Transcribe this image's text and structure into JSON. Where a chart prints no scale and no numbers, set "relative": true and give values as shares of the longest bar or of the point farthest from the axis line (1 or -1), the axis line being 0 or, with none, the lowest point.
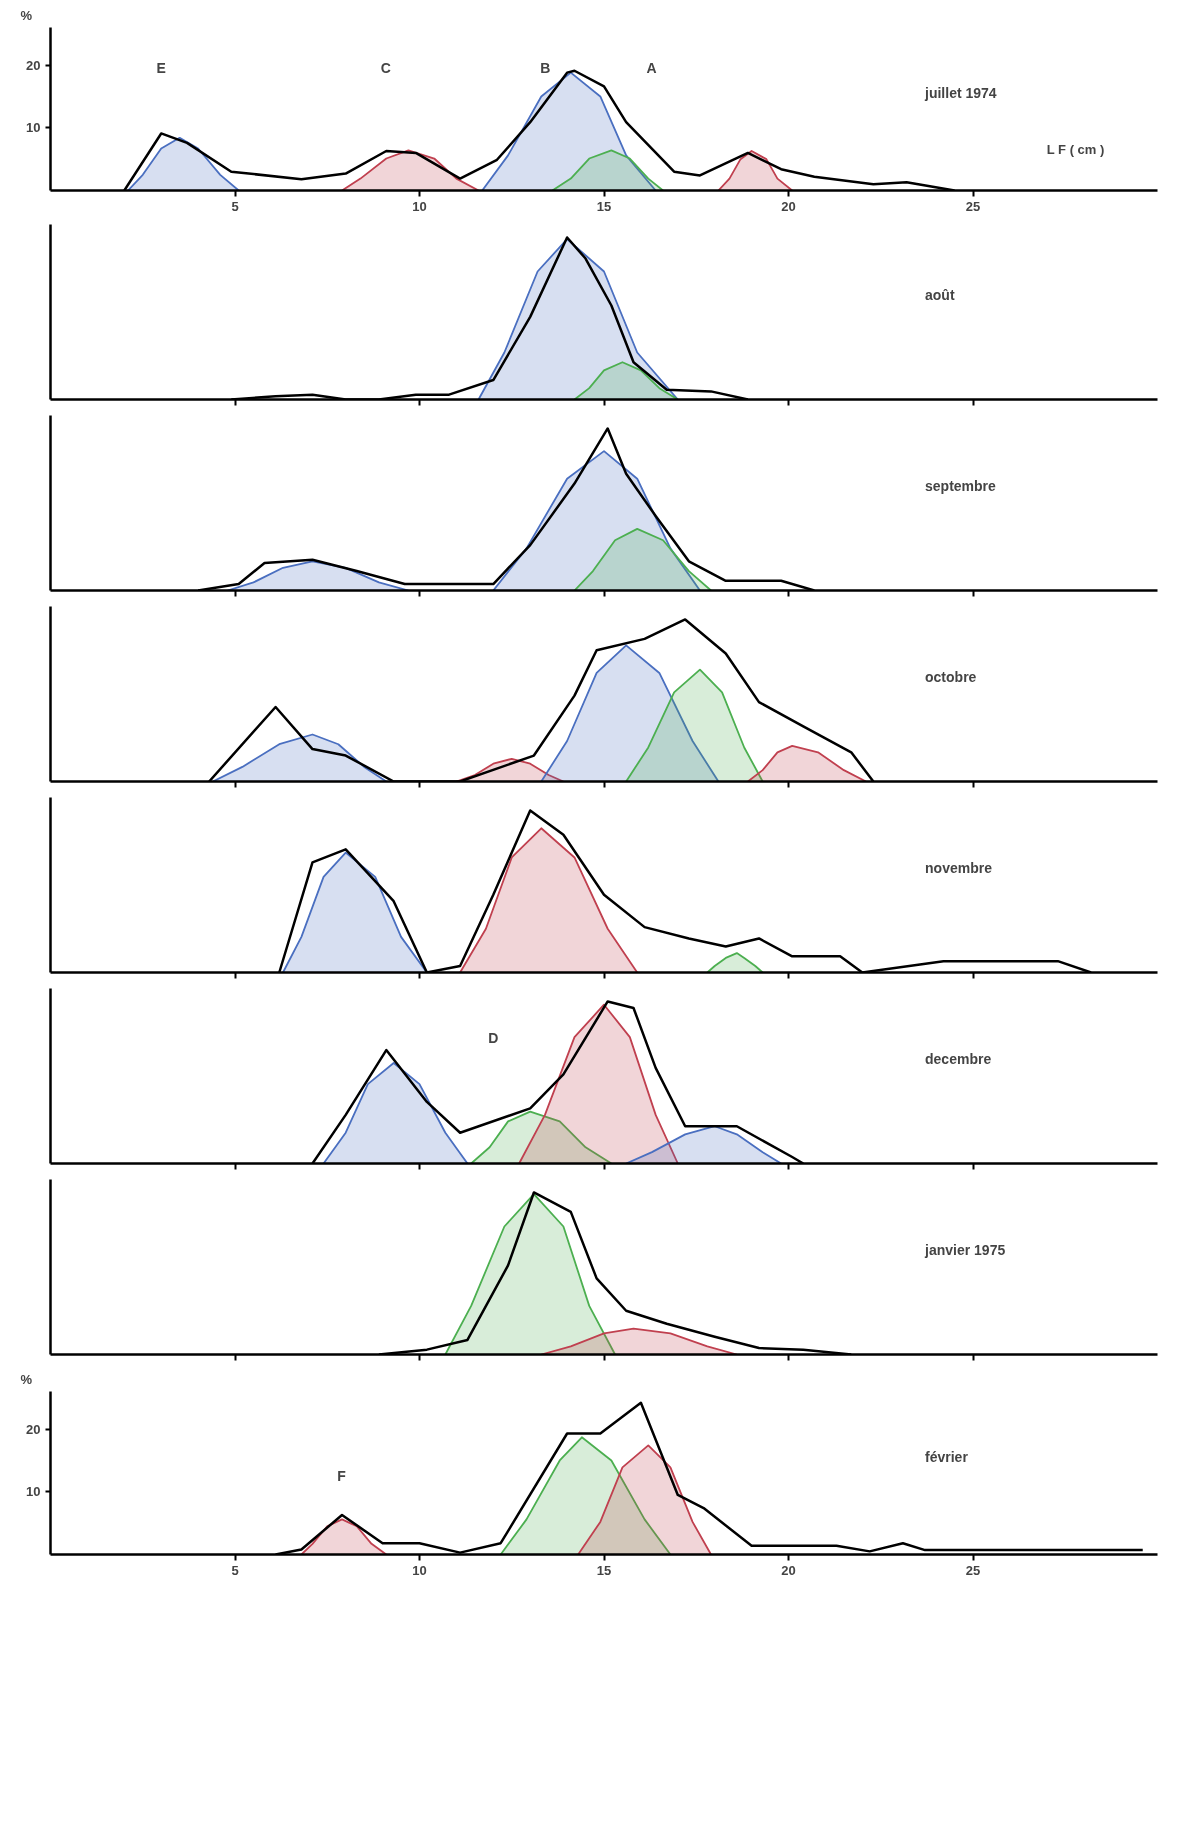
{
  "chart_data": [
    {
      "type": "line",
      "xlabel": "L F ( cm )",
      "ylabel": "%",
      "xlim": [
        0,
        30
      ],
      "ylim": [
        0,
        26
      ],
      "xticks": [
        5,
        10,
        15,
        20,
        25
      ],
      "yticks": [
        10,
        20
      ],
      "grid": false,
      "annotations": [
        "juillet  1974",
        "E",
        "C",
        "B",
        "A"
      ],
      "series": [
        {
          "type": "area",
          "color": "#4a6fc0",
          "x": [
            2.1,
            2.5,
            3.0,
            3.5,
            4.0,
            4.6,
            5.1
          ],
          "values": [
            0,
            2.5,
            6.7,
            8.4,
            6.7,
            2.5,
            0
          ]
        },
        {
          "type": "area",
          "color": "#c0404f",
          "x": [
            7.9,
            8.4,
            9.1,
            9.7,
            10.4,
            11.0,
            11.6
          ],
          "values": [
            0,
            1.9,
            5.1,
            6.4,
            5.1,
            1.9,
            0
          ]
        },
        {
          "type": "area",
          "color": "#4a6fc0",
          "x": [
            11.7,
            12.4,
            13.3,
            14.1,
            14.9,
            15.6,
            16.4
          ],
          "values": [
            0,
            5.6,
            15,
            18.8,
            15,
            5.6,
            0
          ]
        },
        {
          "type": "area",
          "color": "#4caf50",
          "x": [
            13.6,
            14.1,
            14.6,
            15.2,
            15.7,
            16.2,
            16.6
          ],
          "values": [
            0,
            1.9,
            5.1,
            6.4,
            5.1,
            1.9,
            0
          ]
        },
        {
          "type": "area",
          "color": "#c0404f",
          "x": [
            18.1,
            18.4,
            18.7,
            19.0,
            19.4,
            19.7,
            20.1
          ],
          "values": [
            0,
            1.9,
            5,
            6.3,
            5,
            1.9,
            0
          ]
        },
        {
          "color": "#000000",
          "x": [
            2.0,
            3.0,
            3.7,
            4.9,
            6.8,
            8.0,
            9.1,
            9.9,
            11.1,
            12.1,
            13.0,
            14.0,
            14.2,
            15.0,
            15.6,
            16.9,
            17.6,
            18.9,
            19.8,
            20.7,
            22.3,
            23.2,
            24.5
          ],
          "values": [
            0,
            9.1,
            7.6,
            3.0,
            1.8,
            2.7,
            6.3,
            6.0,
            1.9,
            4.9,
            10.9,
            18.8,
            19.1,
            16.6,
            10.9,
            3.0,
            2.4,
            6.0,
            3.4,
            2.2,
            1.0,
            1.3,
            0
          ]
        }
      ]
    },
    {
      "type": "line",
      "relative": true,
      "xlim": [
        0,
        30
      ],
      "xticks": [
        5,
        10,
        15,
        20,
        25
      ],
      "grid": false,
      "tick_labels": false,
      "annotations": [
        "août"
      ],
      "series": [
        {
          "type": "area",
          "color": "#4a6fc0",
          "x": [
            11.6,
            12.3,
            13.2,
            14.0,
            15.0,
            15.9,
            17.0
          ],
          "values": [
            0,
            0.29,
            0.79,
            0.99,
            0.79,
            0.29,
            0
          ]
        },
        {
          "type": "area",
          "color": "#4caf50",
          "x": [
            14.2,
            14.6,
            15.0,
            15.5,
            16.0,
            16.5,
            17.0
          ],
          "values": [
            0,
            0.07,
            0.18,
            0.23,
            0.18,
            0.07,
            0
          ]
        },
        {
          "color": "#000000",
          "x": [
            4.9,
            6.1,
            7.1,
            8.0,
            8.9,
            9.9,
            10.8,
            12.0,
            13.0,
            14.0,
            14.5,
            15.2,
            15.8,
            16.7,
            17.9,
            18.9
          ],
          "values": [
            0,
            0.02,
            0.03,
            0,
            0,
            0.03,
            0.03,
            0.12,
            0.51,
            1,
            0.87,
            0.58,
            0.23,
            0.06,
            0.05,
            0
          ]
        }
      ]
    },
    {
      "type": "line",
      "relative": true,
      "xlim": [
        0,
        30
      ],
      "xticks": [
        5,
        10,
        15,
        20,
        25
      ],
      "grid": false,
      "tick_labels": false,
      "annotations": [
        "septembre"
      ],
      "series": [
        {
          "type": "area",
          "color": "#4a6fc0",
          "x": [
            4.8,
            5.5,
            6.3,
            7.1,
            8.0,
            8.9,
            9.7
          ],
          "values": [
            0,
            0.05,
            0.14,
            0.18,
            0.14,
            0.05,
            0
          ]
        },
        {
          "type": "area",
          "color": "#4a6fc0",
          "x": [
            12.0,
            12.9,
            14.0,
            15.0,
            15.9,
            16.8,
            17.6
          ],
          "values": [
            0,
            0.26,
            0.69,
            0.86,
            0.69,
            0.26,
            0
          ]
        },
        {
          "type": "area",
          "color": "#4caf50",
          "x": [
            14.2,
            14.7,
            15.3,
            15.9,
            16.6,
            17.3,
            17.9
          ],
          "values": [
            0,
            0.12,
            0.31,
            0.38,
            0.31,
            0.12,
            0
          ]
        },
        {
          "color": "#000000",
          "x": [
            4.0,
            5.1,
            5.8,
            7.1,
            8.3,
            9.6,
            12.0,
            13.0,
            14.2,
            15.1,
            15.6,
            16.4,
            17.3,
            18.3,
            19.8,
            20.7
          ],
          "values": [
            0,
            0.04,
            0.17,
            0.19,
            0.12,
            0.04,
            0.04,
            0.28,
            0.66,
            1,
            0.72,
            0.46,
            0.18,
            0.06,
            0.06,
            0
          ]
        }
      ]
    },
    {
      "type": "line",
      "relative": true,
      "xlim": [
        0,
        30
      ],
      "xticks": [
        5,
        10,
        15,
        20,
        25
      ],
      "grid": false,
      "tick_labels": false,
      "annotations": [
        "octobre"
      ],
      "series": [
        {
          "type": "area",
          "color": "#4a6fc0",
          "x": [
            4.4,
            5.2,
            6.2,
            7.1,
            7.8,
            8.5,
            9.1
          ],
          "values": [
            0,
            0.09,
            0.23,
            0.29,
            0.23,
            0.09,
            0
          ]
        },
        {
          "type": "area",
          "color": "#c0404f",
          "x": [
            11.0,
            11.5,
            12.0,
            12.5,
            13.0,
            13.5,
            13.9
          ],
          "values": [
            0,
            0.04,
            0.11,
            0.14,
            0.11,
            0.04,
            0
          ]
        },
        {
          "type": "area",
          "color": "#4a6fc0",
          "x": [
            13.3,
            14.0,
            14.8,
            15.6,
            16.5,
            17.4,
            18.1
          ],
          "values": [
            0,
            0.25,
            0.67,
            0.84,
            0.67,
            0.25,
            0
          ]
        },
        {
          "type": "area",
          "color": "#4caf50",
          "x": [
            15.6,
            16.2,
            16.9,
            17.6,
            18.2,
            18.8,
            19.3
          ],
          "values": [
            0,
            0.21,
            0.55,
            0.69,
            0.55,
            0.21,
            0
          ]
        },
        {
          "type": "area",
          "color": "#c0404f",
          "x": [
            18.9,
            19.3,
            19.7,
            20.1,
            20.8,
            21.5,
            22.1
          ],
          "values": [
            0,
            0.07,
            0.18,
            0.22,
            0.18,
            0.07,
            0
          ]
        },
        {
          "color": "#000000",
          "x": [
            4.3,
            6.1,
            7.1,
            8.0,
            9.3,
            11.1,
            13.1,
            14.2,
            14.8,
            16.1,
            17.2,
            18.3,
            19.2,
            20.4,
            21.7,
            22.3
          ],
          "values": [
            0,
            0.46,
            0.2,
            0.16,
            0,
            0,
            0.16,
            0.53,
            0.81,
            0.88,
            1,
            0.79,
            0.49,
            0.34,
            0.18,
            0
          ]
        }
      ]
    },
    {
      "type": "line",
      "relative": true,
      "xlim": [
        0,
        30
      ],
      "xticks": [
        5,
        10,
        15,
        20,
        25
      ],
      "grid": false,
      "tick_labels": false,
      "annotations": [
        "novembre"
      ],
      "series": [
        {
          "type": "area",
          "color": "#4a6fc0",
          "x": [
            6.3,
            6.8,
            7.4,
            8.0,
            8.8,
            9.5,
            10.2
          ],
          "values": [
            0,
            0.22,
            0.59,
            0.74,
            0.59,
            0.22,
            0
          ]
        },
        {
          "type": "area",
          "color": "#c0404f",
          "x": [
            11.1,
            11.8,
            12.5,
            13.3,
            14.2,
            15.1,
            15.9
          ],
          "values": [
            0,
            0.27,
            0.71,
            0.89,
            0.71,
            0.27,
            0
          ]
        },
        {
          "type": "area",
          "color": "#4caf50",
          "x": [
            17.8,
            18.0,
            18.3,
            18.6,
            18.8,
            19.1,
            19.3
          ],
          "values": [
            0,
            0.04,
            0.09,
            0.12,
            0.09,
            0.04,
            0
          ]
        },
        {
          "color": "#000000",
          "x": [
            6.2,
            7.1,
            8.0,
            9.3,
            10.2,
            11.1,
            12.0,
            13.0,
            13.9,
            15.0,
            16.1,
            17.3,
            18.3,
            19.2,
            20.1,
            21.4,
            22.0,
            24.2,
            27.3,
            28.2
          ],
          "values": [
            0,
            0.68,
            0.76,
            0.44,
            0,
            0.04,
            0.48,
            1,
            0.85,
            0.48,
            0.28,
            0.21,
            0.16,
            0.21,
            0.1,
            0.1,
            0,
            0.07,
            0.07,
            0
          ]
        }
      ]
    },
    {
      "type": "line",
      "relative": true,
      "xlim": [
        0,
        30
      ],
      "xticks": [
        5,
        10,
        15,
        20,
        25
      ],
      "grid": false,
      "tick_labels": false,
      "annotations": [
        "decembre",
        "D"
      ],
      "series": [
        {
          "type": "area",
          "color": "#4a6fc0",
          "x": [
            7.4,
            8.0,
            8.6,
            9.3,
            10.0,
            10.7,
            11.3
          ],
          "values": [
            0,
            0.19,
            0.49,
            0.62,
            0.49,
            0.19,
            0
          ]
        },
        {
          "type": "area",
          "color": "#4caf50",
          "x": [
            11.4,
            11.9,
            12.4,
            13.0,
            13.8,
            14.5,
            15.2
          ],
          "values": [
            0,
            0.1,
            0.26,
            0.32,
            0.26,
            0.1,
            0
          ]
        },
        {
          "type": "area",
          "color": "#c0404f",
          "x": [
            12.7,
            13.4,
            14.2,
            15.0,
            15.7,
            16.4,
            17.0
          ],
          "values": [
            0,
            0.3,
            0.78,
            0.98,
            0.78,
            0.3,
            0
          ]
        },
        {
          "type": "area",
          "color": "#4a6fc0",
          "x": [
            15.6,
            16.3,
            17.2,
            18.0,
            18.6,
            19.3,
            19.8
          ],
          "values": [
            0,
            0.07,
            0.18,
            0.23,
            0.18,
            0.07,
            0
          ]
        },
        {
          "color": "#000000",
          "x": [
            7.1,
            8.0,
            9.1,
            10.2,
            11.1,
            13.0,
            13.9,
            15.1,
            15.8,
            16.4,
            17.2,
            18.6,
            20.1,
            20.4
          ],
          "values": [
            0,
            0.3,
            0.7,
            0.38,
            0.19,
            0.34,
            0.55,
            1,
            0.96,
            0.59,
            0.23,
            0.23,
            0.04,
            0
          ]
        }
      ]
    },
    {
      "type": "line",
      "relative": true,
      "xlim": [
        0,
        30
      ],
      "xticks": [
        5,
        10,
        15,
        20,
        25
      ],
      "grid": false,
      "tick_labels": false,
      "annotations": [
        "janvier   1975"
      ],
      "series": [
        {
          "type": "area",
          "color": "#4caf50",
          "x": [
            10.7,
            11.4,
            12.3,
            13.1,
            13.9,
            14.6,
            15.3
          ],
          "values": [
            0,
            0.3,
            0.79,
            0.99,
            0.79,
            0.3,
            0
          ]
        },
        {
          "type": "area",
          "color": "#c0404f",
          "x": [
            13.3,
            14.1,
            15.0,
            15.8,
            16.8,
            17.8,
            18.6
          ],
          "values": [
            0,
            0.05,
            0.13,
            0.16,
            0.13,
            0.05,
            0
          ]
        },
        {
          "color": "#000000",
          "x": [
            8.9,
            10.2,
            11.3,
            12.4,
            13.1,
            14.1,
            14.8,
            15.6,
            16.7,
            18.0,
            19.2,
            20.4,
            21.7
          ],
          "values": [
            0,
            0.03,
            0.09,
            0.55,
            1,
            0.88,
            0.47,
            0.27,
            0.19,
            0.11,
            0.04,
            0.03,
            0
          ]
        }
      ]
    },
    {
      "type": "line",
      "ylabel": "%",
      "xlim": [
        0,
        30
      ],
      "ylim": [
        0,
        26
      ],
      "xticks": [
        5,
        10,
        15,
        20,
        25
      ],
      "yticks": [
        10,
        20
      ],
      "grid": false,
      "annotations": [
        "février",
        "F"
      ],
      "series": [
        {
          "type": "area",
          "color": "#c0404f",
          "x": [
            6.8,
            7.1,
            7.5,
            7.9,
            8.3,
            8.7,
            9.1
          ],
          "values": [
            0,
            1.7,
            4.5,
            5.6,
            4.5,
            1.7,
            0
          ]
        },
        {
          "type": "area",
          "color": "#4caf50",
          "x": [
            12.2,
            12.9,
            13.8,
            14.4,
            15.2,
            16.1,
            16.8
          ],
          "values": [
            0,
            5.6,
            15,
            18.7,
            15,
            5.6,
            0
          ]
        },
        {
          "type": "area",
          "color": "#c0404f",
          "x": [
            14.3,
            14.9,
            15.5,
            16.2,
            16.8,
            17.4,
            17.9
          ],
          "values": [
            0,
            5.2,
            13.9,
            17.4,
            13.9,
            5.2,
            0
          ]
        },
        {
          "color": "#000000",
          "x": [
            6.1,
            6.8,
            7.9,
            9.0,
            10.0,
            11.1,
            12.2,
            14.0,
            14.9,
            16.0,
            17.0,
            17.7,
            19.0,
            21.3,
            22.2,
            23.1,
            23.7,
            29.6
          ],
          "values": [
            0,
            0.8,
            6.3,
            1.8,
            1.8,
            0.3,
            1.8,
            19.3,
            19.3,
            24.2,
            9.5,
            7.4,
            1.4,
            1.4,
            0.5,
            1.8,
            0.7,
            0.7
          ]
        }
      ]
    }
  ]
}
